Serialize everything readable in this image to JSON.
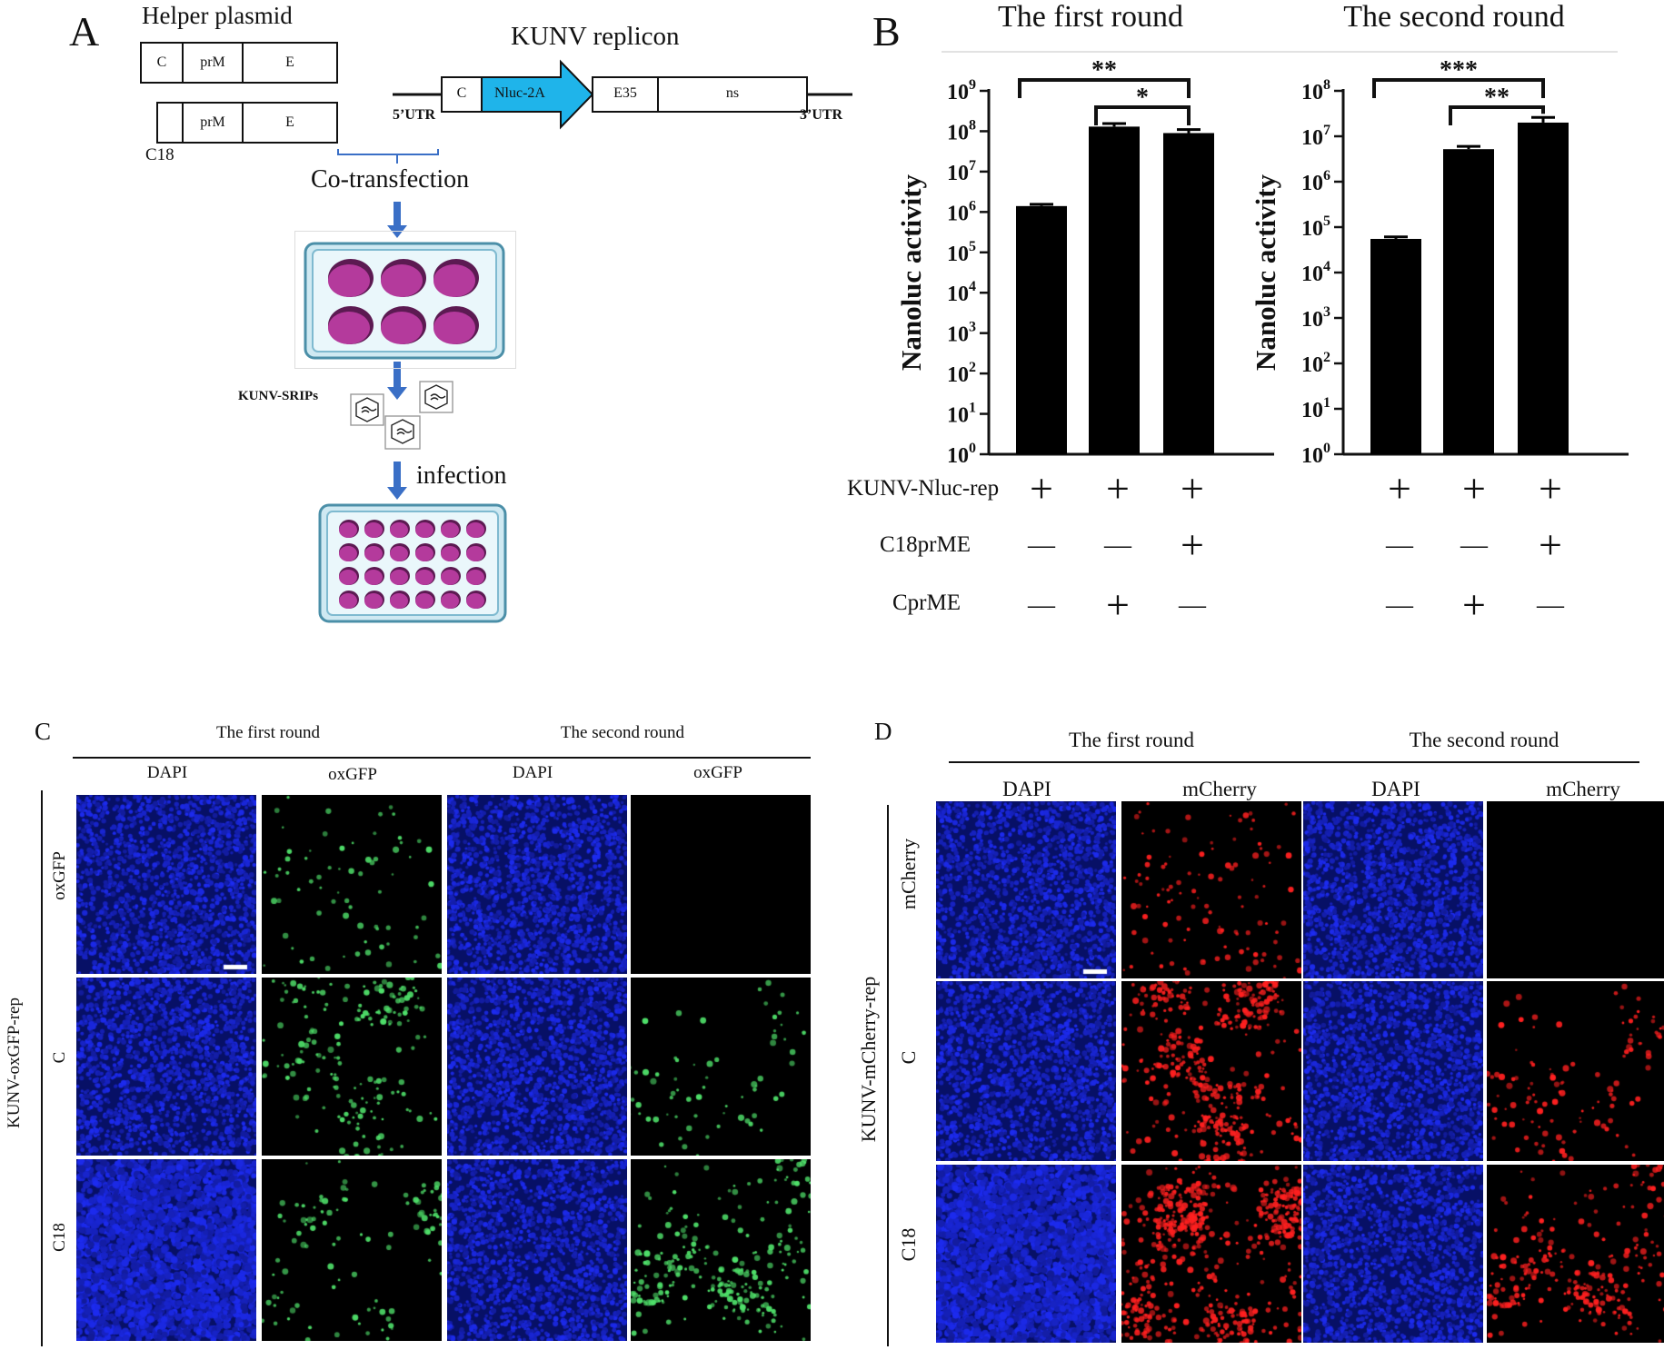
{
  "panelA": {
    "letter": "A",
    "helper_title": "Helper plasmid",
    "helper1": {
      "c": "C",
      "prm": "prM",
      "e": "E"
    },
    "helper2": {
      "prm": "prM",
      "e": "E",
      "label": "C18"
    },
    "replicon_title": "KUNV replicon",
    "replicon": {
      "c": "C",
      "nluc": "Nluc-2A",
      "e35": "E35",
      "ns": "ns",
      "utr5": "5’UTR",
      "utr3": "3’UTR"
    },
    "cotransfection": "Co-transfection",
    "srips": "KUNV-SRIPs",
    "infection": "infection",
    "colors": {
      "nluc": "#1fb4ea",
      "arrow": "#3a6fc6",
      "well": "#b43a9c",
      "plate": "#bfe3ef"
    }
  },
  "panelB": {
    "letter": "B",
    "row_labels": [
      "KUNV-Nluc-rep",
      "C18prME",
      "CprME"
    ],
    "plus": "+",
    "minus": "—"
  },
  "chart_data": [
    {
      "type": "bar",
      "title": "The first round",
      "ylabel": "Nanoluc activity",
      "yscale": "log10",
      "ylim": [
        1,
        1000000000
      ],
      "ytick_exponents": [
        0,
        1,
        2,
        3,
        4,
        5,
        6,
        7,
        8,
        9
      ],
      "categories": [
        "KUNV-Nluc-rep",
        "KUNV-Nluc-rep + CprME",
        "KUNV-Nluc-rep + C18prME"
      ],
      "values": [
        1400000,
        130000000,
        90000000
      ],
      "errors": [
        150000,
        25000000,
        20000000
      ],
      "conditions": {
        "KUNV-Nluc-rep": [
          "+",
          "+",
          "+"
        ],
        "C18prME": [
          "—",
          "—",
          "+"
        ],
        "CprME": [
          "—",
          "+",
          "—"
        ]
      },
      "significance": [
        {
          "from": 0,
          "to": 2,
          "label": "**"
        },
        {
          "from": 1,
          "to": 2,
          "label": "*"
        }
      ]
    },
    {
      "type": "bar",
      "title": "The second round",
      "ylabel": "Nanoluc activity",
      "yscale": "log10",
      "ylim": [
        1,
        100000000
      ],
      "ytick_exponents": [
        0,
        1,
        2,
        3,
        4,
        5,
        6,
        7,
        8
      ],
      "categories": [
        "KUNV-Nluc-rep",
        "KUNV-Nluc-rep + CprME",
        "KUNV-Nluc-rep + C18prME"
      ],
      "values": [
        55000,
        5200000,
        20000000
      ],
      "errors": [
        6000,
        800000,
        6000000
      ],
      "conditions": {
        "KUNV-Nluc-rep": [
          "+",
          "+",
          "+"
        ],
        "C18prME": [
          "—",
          "—",
          "+"
        ],
        "CprME": [
          "—",
          "+",
          "—"
        ]
      },
      "significance": [
        {
          "from": 0,
          "to": 2,
          "label": "***"
        },
        {
          "from": 1,
          "to": 2,
          "label": "**"
        }
      ]
    }
  ],
  "panelC": {
    "letter": "C",
    "round1": "The first round",
    "round2": "The second round",
    "columns": [
      "DAPI",
      "oxGFP",
      "DAPI",
      "oxGFP"
    ],
    "rows": [
      "oxGFP",
      "C",
      "C18"
    ],
    "side_label": "KUNV-oxGFP-rep",
    "colors": {
      "dapi": "#1526c8",
      "signal": "#4fe06a"
    }
  },
  "panelD": {
    "letter": "D",
    "round1": "The first round",
    "round2": "The second round",
    "columns": [
      "DAPI",
      "mCherry",
      "DAPI",
      "mCherry"
    ],
    "rows": [
      "mCherry",
      "C",
      "C18"
    ],
    "side_label": "KUNV-mCherry-rep",
    "colors": {
      "dapi": "#1526c8",
      "signal": "#ff2020"
    }
  }
}
